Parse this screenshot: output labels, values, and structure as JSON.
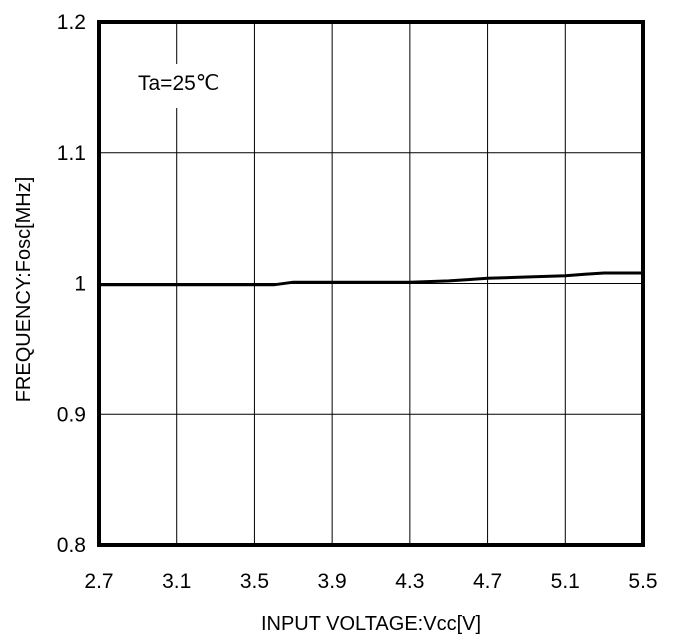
{
  "chart_data": {
    "type": "line",
    "annotation": "Ta=25℃",
    "xlabel": "INPUT VOLTAGE:Vcc[V]",
    "ylabel": "FREQUENCY:Fosc[MHz]",
    "xlim": [
      2.7,
      5.5
    ],
    "ylim": [
      0.8,
      1.2
    ],
    "x_ticks": [
      2.7,
      3.1,
      3.5,
      3.9,
      4.3,
      4.7,
      5.1,
      5.5
    ],
    "x_tick_labels": [
      "2.7",
      "3.1",
      "3.5",
      "3.9",
      "4.3",
      "4.7",
      "5.1",
      "5.5"
    ],
    "y_ticks": [
      0.8,
      0.9,
      1.0,
      1.1,
      1.2
    ],
    "y_tick_labels": [
      "0.8",
      "0.9",
      "1",
      "1.1",
      "1.2"
    ],
    "grid": true,
    "series": [
      {
        "x": [
          2.7,
          3.1,
          3.5,
          3.6,
          3.7,
          3.9,
          4.1,
          4.3,
          4.5,
          4.6,
          4.7,
          4.9,
          5.1,
          5.2,
          5.3,
          5.5
        ],
        "y": [
          0.999,
          0.999,
          0.999,
          0.999,
          1.001,
          1.001,
          1.001,
          1.001,
          1.002,
          1.003,
          1.004,
          1.005,
          1.006,
          1.007,
          1.008,
          1.008
        ],
        "color": "#000000"
      }
    ]
  }
}
